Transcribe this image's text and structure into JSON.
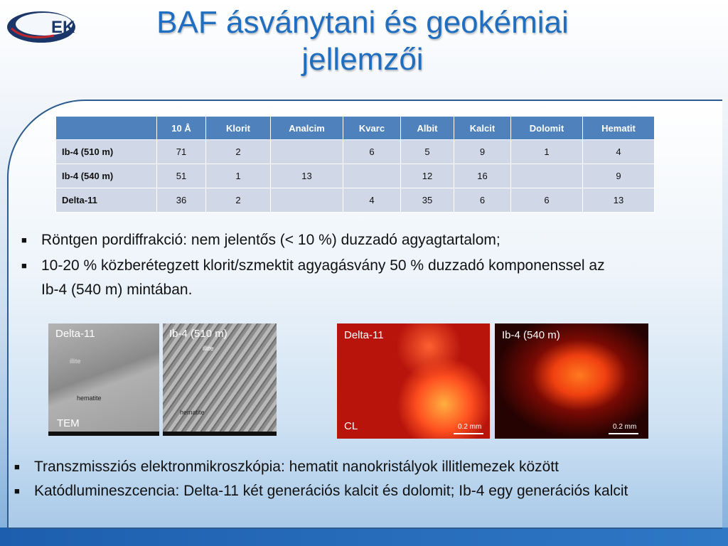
{
  "title": "BAF ásványtani és geokémiai jellemzői",
  "logo_text": "EK",
  "table": {
    "headers": [
      "",
      "10 Å",
      "Klorit",
      "Analcim",
      "Kvarc",
      "Albit",
      "Kalcit",
      "Dolomit",
      "Hematit"
    ],
    "rows": [
      [
        "Ib-4 (510 m)",
        "71",
        "2",
        "",
        "6",
        "5",
        "9",
        "1",
        "4"
      ],
      [
        "Ib-4 (540 m)",
        "51",
        "1",
        "13",
        "",
        "12",
        "16",
        "",
        "9"
      ],
      [
        "Delta-11",
        "36",
        "2",
        "",
        "4",
        "35",
        "6",
        "6",
        "13"
      ]
    ]
  },
  "bullets_top": [
    "Röntgen pordiffrakció: nem jelentős (< 10 %) duzzadó agyagtartalom;",
    "10-20 % közberétegzett klorit/szmektit agyagásvány 50 % duzzadó komponenssel az Ib-4 (540 m) mintában."
  ],
  "images": [
    {
      "label": "Delta-11",
      "corner": "TEM",
      "annotations": [
        "illite",
        "hematite"
      ]
    },
    {
      "label": "Ib-4 (510 m)",
      "annotations": [
        "illite",
        "hematite"
      ]
    },
    {
      "label": "Delta-11",
      "corner": "CL",
      "scale": "0.2 mm"
    },
    {
      "label": "Ib-4 (540 m)",
      "scale": "0.2 mm"
    }
  ],
  "bullets_bottom": [
    "Transzmissziós elektronmikroszkópia: hematit nanokristályok illitlemezek között",
    "Katódlumineszcencia: Delta-11 két generációs kalcit és dolomit; Ib-4 egy generációs kalcit"
  ]
}
